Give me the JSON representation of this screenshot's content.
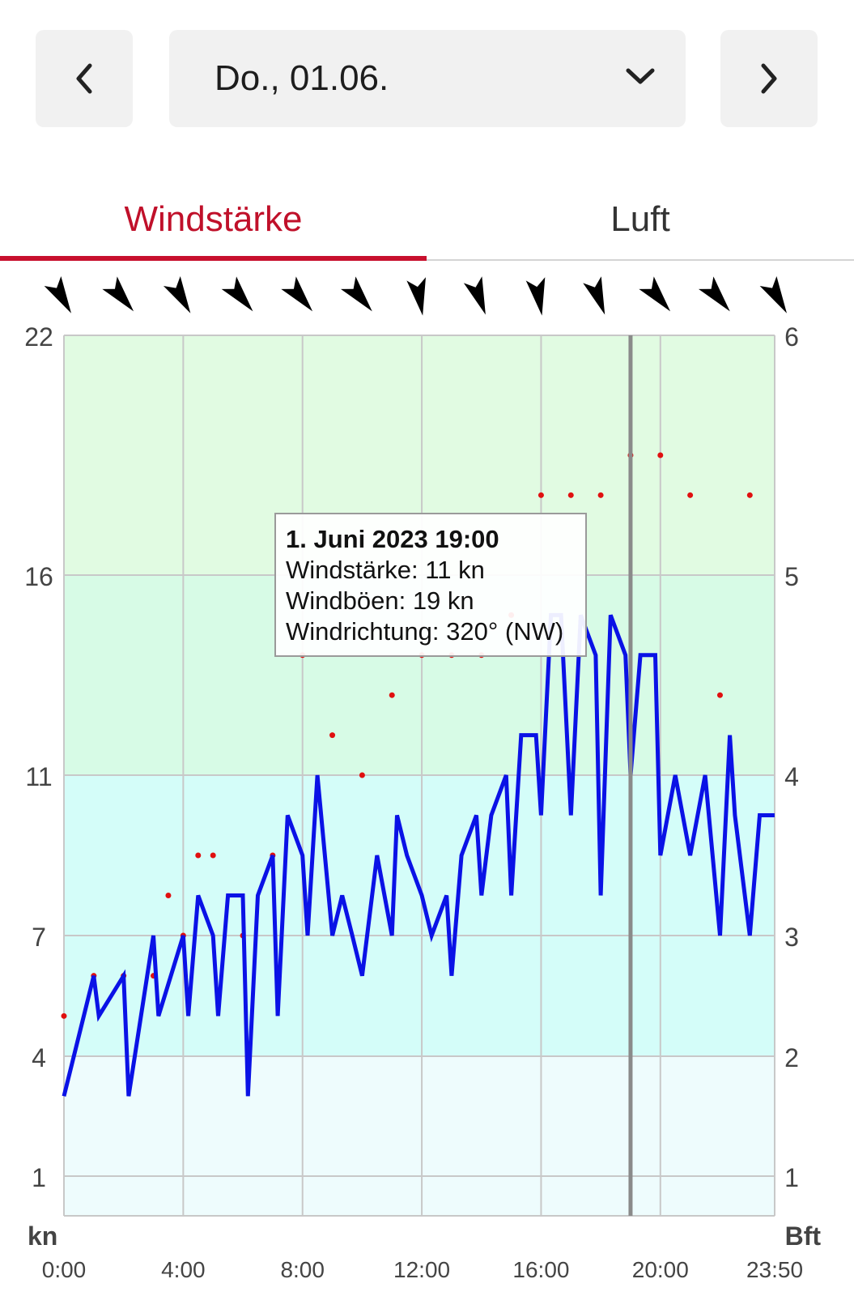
{
  "date_nav": {
    "selected_date": "Do., 01.06.",
    "prev_icon": "chevron-left-icon",
    "next_icon": "chevron-right-icon",
    "dropdown_icon": "chevron-down-icon"
  },
  "tabs": [
    {
      "label": "Windstärke",
      "active": true
    },
    {
      "label": "Luft",
      "active": false
    }
  ],
  "colors": {
    "accent": "#c8102e",
    "wind_line": "#0a12e6",
    "gust_dots": "#e01010",
    "zone_low": "#eefcfd",
    "zone_mid": "#d4fdf9",
    "zone_high": "#d7fbe6",
    "zone_top": "#e1fbe2"
  },
  "chart_data": {
    "type": "line",
    "left_unit": "kn",
    "right_unit": "Bft",
    "left_ticks": [
      "1",
      "4",
      "7",
      "11",
      "16",
      "22"
    ],
    "right_ticks": [
      "1",
      "2",
      "3",
      "4",
      "5",
      "6"
    ],
    "x_ticks": [
      "0:00",
      "4:00",
      "8:00",
      "12:00",
      "16:00",
      "20:00",
      "23:50"
    ],
    "x_range_hours": [
      0,
      23.833
    ],
    "cursor_time_hours": 19,
    "tooltip": {
      "title": "1. Juni 2023 19:00",
      "lines": [
        "Windstärke: 11 kn",
        "Windböen: 19 kn",
        "Windrichtung: 320° (NW)"
      ]
    },
    "wind_direction_deg": [
      330,
      320,
      330,
      320,
      320,
      320,
      350,
      340,
      350,
      340,
      320,
      320,
      330
    ],
    "series": [
      {
        "name": "Windstärke",
        "x": [
          0,
          1,
          1.17,
          2,
          2.17,
          3,
          3.17,
          4,
          4.17,
          4.5,
          5,
          5.17,
          5.5,
          6,
          6.17,
          6.5,
          7,
          7.17,
          7.5,
          8,
          8.17,
          8.5,
          9,
          9.33,
          9.67,
          10,
          10.5,
          11,
          11.17,
          11.5,
          12,
          12.33,
          12.83,
          13,
          13.33,
          13.83,
          14,
          14.33,
          14.83,
          15,
          15.33,
          15.83,
          16,
          16.33,
          16.67,
          17,
          17.33,
          17.83,
          18,
          18.33,
          18.83,
          19,
          19.33,
          19.83,
          20,
          20.5,
          21,
          21.5,
          22,
          22.33,
          22.5,
          23,
          23.33,
          23.83
        ],
        "y": [
          3,
          6,
          5,
          6,
          3,
          7,
          5,
          7,
          5,
          8,
          7,
          5,
          8,
          8,
          3,
          8,
          9,
          5,
          10,
          9,
          7,
          11,
          7,
          8,
          7,
          6,
          9,
          7,
          10,
          9,
          8,
          7,
          8,
          6,
          9,
          10,
          8,
          10,
          11,
          8,
          12,
          12,
          10,
          15,
          15,
          10,
          15,
          14,
          8,
          15,
          14,
          11,
          14,
          14,
          9,
          11,
          9,
          11,
          7,
          12,
          10,
          7,
          10,
          10
        ]
      },
      {
        "name": "Windböen",
        "type": "scatter",
        "x": [
          0,
          1,
          2,
          3,
          3.5,
          4,
          4.5,
          5,
          6,
          7,
          8,
          9,
          10,
          11,
          12,
          13,
          14,
          15,
          16,
          17,
          18,
          19,
          20,
          21,
          22,
          23
        ],
        "y": [
          5,
          6,
          6,
          6,
          8,
          7,
          9,
          9,
          7,
          9,
          14,
          12,
          11,
          13,
          14,
          14,
          14,
          15,
          18,
          18,
          18,
          19,
          19,
          18,
          13,
          18
        ]
      }
    ]
  }
}
